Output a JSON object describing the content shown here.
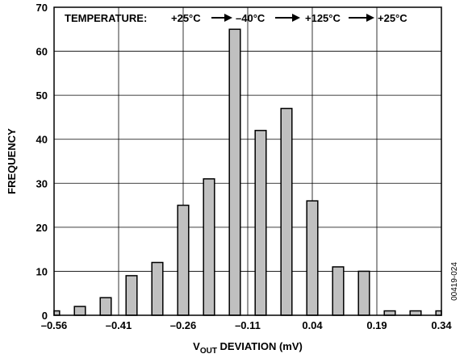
{
  "chart_data": {
    "type": "bar",
    "xlabel": {
      "main": "V",
      "sub": "OUT",
      "rest": " DEVIATION (mV)"
    },
    "ylabel": "FREQUENCY",
    "xlim": [
      -0.56,
      0.34
    ],
    "ylim": [
      0,
      70
    ],
    "x_ticks": [
      -0.56,
      -0.41,
      -0.26,
      -0.11,
      0.04,
      0.19,
      0.34
    ],
    "x_tick_labels": [
      "–0.56",
      "–0.41",
      "–0.26",
      "–0.11",
      "0.04",
      "0.19",
      "0.34"
    ],
    "y_ticks": [
      0,
      10,
      20,
      30,
      40,
      50,
      60,
      70
    ],
    "y_tick_labels": [
      "0",
      "10",
      "20",
      "30",
      "40",
      "50",
      "60",
      "70"
    ],
    "grid": true,
    "bar_color": "#c0c0c0",
    "x": [
      -0.56,
      -0.53,
      -0.5,
      -0.47,
      -0.44,
      -0.41,
      -0.38,
      -0.35,
      -0.32,
      -0.29,
      -0.26,
      -0.23,
      -0.2,
      -0.17,
      -0.14,
      -0.11,
      -0.08,
      -0.05,
      -0.02,
      0.01,
      0.04,
      0.07,
      0.1,
      0.13,
      0.16,
      0.19,
      0.22,
      0.25,
      0.28,
      0.31,
      0.34
    ],
    "values": [
      1,
      0,
      2,
      0,
      4,
      0,
      9,
      0,
      12,
      0,
      25,
      0,
      31,
      0,
      65,
      0,
      42,
      0,
      47,
      0,
      26,
      0,
      11,
      0,
      10,
      0,
      1,
      0,
      1,
      0,
      1
    ],
    "annotation": {
      "prefix": "TEMPERATURE:",
      "steps": [
        "+25°C",
        "–40°C",
        "+125°C",
        "+25°C"
      ]
    }
  },
  "figure_id": "00419-024"
}
